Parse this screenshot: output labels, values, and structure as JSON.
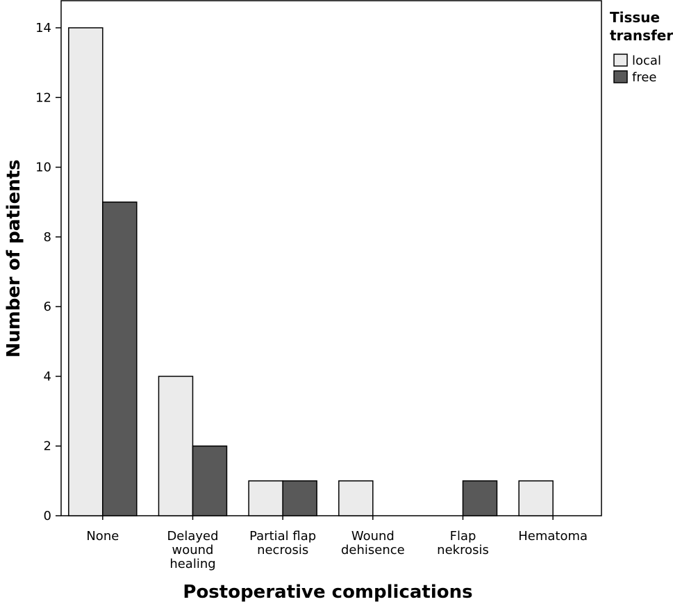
{
  "chart_data": {
    "type": "bar",
    "xlabel": "Postoperative complications",
    "ylabel": "Number of patients",
    "ylim": [
      0,
      14
    ],
    "yticks": [
      0,
      2,
      4,
      6,
      8,
      10,
      12,
      14
    ],
    "categories": [
      [
        "None"
      ],
      [
        "Delayed",
        "wound",
        "healing"
      ],
      [
        "Partial flap",
        "necrosis"
      ],
      [
        "Wound",
        "dehisence"
      ],
      [
        "Flap",
        "nekrosis"
      ],
      [
        "Hematoma"
      ]
    ],
    "series": [
      {
        "name": "local",
        "color": "#ebebeb",
        "values": [
          14,
          4,
          1,
          1,
          0,
          1
        ]
      },
      {
        "name": "free",
        "color": "#595959",
        "values": [
          9,
          2,
          1,
          0,
          1,
          0
        ]
      }
    ],
    "legend": {
      "title": [
        "Tissue",
        "transfer"
      ],
      "placement": "top-right-outside"
    },
    "grid": false
  }
}
